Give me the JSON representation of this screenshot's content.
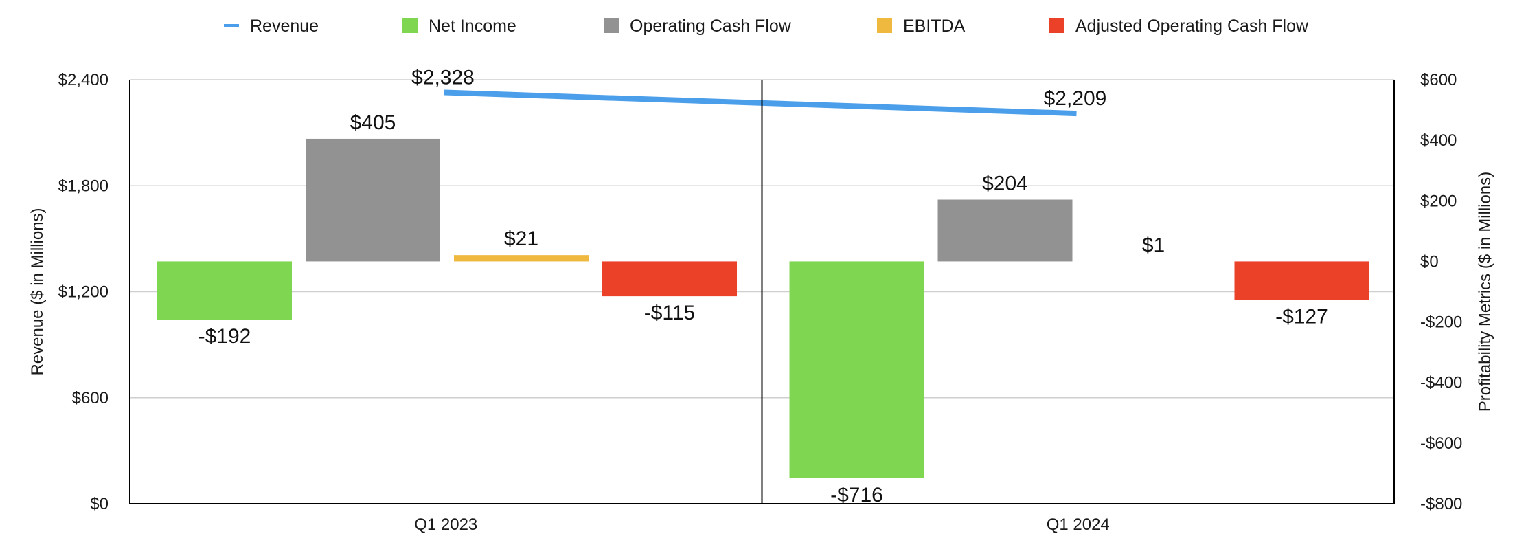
{
  "chart_data": {
    "type": "bar",
    "categories": [
      "Q1 2023",
      "Q1 2024"
    ],
    "left_axis": {
      "label": "Revenue ($ in Millions)",
      "ylim": [
        0,
        2400
      ],
      "ticks": [
        "$0",
        "$600",
        "$1,200",
        "$1,800",
        "$2,400"
      ],
      "tick_values": [
        0,
        600,
        1200,
        1800,
        2400
      ]
    },
    "right_axis": {
      "label": "Profitability Metrics ($ in Millions)",
      "ylim": [
        -800,
        600
      ],
      "ticks": [
        "-$800",
        "-$600",
        "-$400",
        "-$200",
        "$0",
        "$200",
        "$400",
        "$600"
      ],
      "tick_values": [
        -800,
        -600,
        -400,
        -200,
        0,
        200,
        400,
        600
      ]
    },
    "line_series": {
      "name": "Revenue",
      "color": "#4a9eea",
      "axis": "left",
      "values": [
        2328,
        2209
      ],
      "labels": [
        "$2,328",
        "$2,209"
      ]
    },
    "bar_series": [
      {
        "name": "Net Income",
        "color": "#7fd651",
        "axis": "right",
        "values": [
          -192,
          -716
        ],
        "labels": [
          "-$192",
          "-$716"
        ]
      },
      {
        "name": "Operating Cash Flow",
        "color": "#929292",
        "axis": "right",
        "values": [
          405,
          204
        ],
        "labels": [
          "$405",
          "$204"
        ]
      },
      {
        "name": "EBITDA",
        "color": "#efb83e",
        "axis": "right",
        "values": [
          21,
          1
        ],
        "labels": [
          "$21",
          "$1"
        ]
      },
      {
        "name": "Adjusted Operating Cash Flow",
        "color": "#ea4128",
        "axis": "right",
        "values": [
          -115,
          -127
        ],
        "labels": [
          "-$115",
          "-$127"
        ]
      }
    ],
    "legend_position": "top",
    "grid": true
  }
}
